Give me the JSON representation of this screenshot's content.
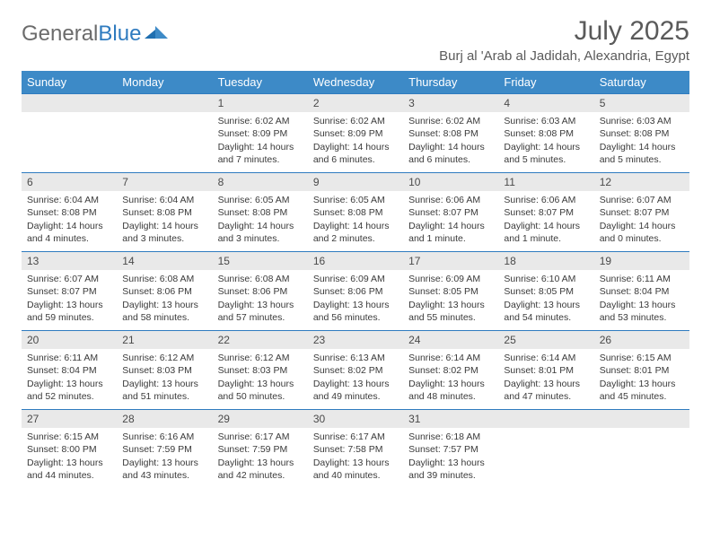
{
  "branding": {
    "logo_word1": "General",
    "logo_word2": "Blue",
    "logo_text_color": "#6b6b6b",
    "logo_accent_color": "#2f7bbf"
  },
  "header": {
    "title": "July 2025",
    "location": "Burj al 'Arab al Jadidah, Alexandria, Egypt",
    "title_color": "#5a5a5a",
    "title_fontsize": 30,
    "location_fontsize": 15
  },
  "styling": {
    "header_row_bg": "#3d8ac7",
    "header_row_text": "#ffffff",
    "daynum_bg": "#e9e9e9",
    "daynum_border_top": "#2f7bbf",
    "cell_text_color": "#3a3a3a",
    "cell_fontsize": 10.5,
    "daynum_fontsize": 12,
    "page_bg": "#ffffff"
  },
  "calendar": {
    "day_headers": [
      "Sunday",
      "Monday",
      "Tuesday",
      "Wednesday",
      "Thursday",
      "Friday",
      "Saturday"
    ],
    "weeks": [
      [
        null,
        null,
        {
          "n": "1",
          "sunrise": "6:02 AM",
          "sunset": "8:09 PM",
          "daylight": "14 hours and 7 minutes."
        },
        {
          "n": "2",
          "sunrise": "6:02 AM",
          "sunset": "8:09 PM",
          "daylight": "14 hours and 6 minutes."
        },
        {
          "n": "3",
          "sunrise": "6:02 AM",
          "sunset": "8:08 PM",
          "daylight": "14 hours and 6 minutes."
        },
        {
          "n": "4",
          "sunrise": "6:03 AM",
          "sunset": "8:08 PM",
          "daylight": "14 hours and 5 minutes."
        },
        {
          "n": "5",
          "sunrise": "6:03 AM",
          "sunset": "8:08 PM",
          "daylight": "14 hours and 5 minutes."
        }
      ],
      [
        {
          "n": "6",
          "sunrise": "6:04 AM",
          "sunset": "8:08 PM",
          "daylight": "14 hours and 4 minutes."
        },
        {
          "n": "7",
          "sunrise": "6:04 AM",
          "sunset": "8:08 PM",
          "daylight": "14 hours and 3 minutes."
        },
        {
          "n": "8",
          "sunrise": "6:05 AM",
          "sunset": "8:08 PM",
          "daylight": "14 hours and 3 minutes."
        },
        {
          "n": "9",
          "sunrise": "6:05 AM",
          "sunset": "8:08 PM",
          "daylight": "14 hours and 2 minutes."
        },
        {
          "n": "10",
          "sunrise": "6:06 AM",
          "sunset": "8:07 PM",
          "daylight": "14 hours and 1 minute."
        },
        {
          "n": "11",
          "sunrise": "6:06 AM",
          "sunset": "8:07 PM",
          "daylight": "14 hours and 1 minute."
        },
        {
          "n": "12",
          "sunrise": "6:07 AM",
          "sunset": "8:07 PM",
          "daylight": "14 hours and 0 minutes."
        }
      ],
      [
        {
          "n": "13",
          "sunrise": "6:07 AM",
          "sunset": "8:07 PM",
          "daylight": "13 hours and 59 minutes."
        },
        {
          "n": "14",
          "sunrise": "6:08 AM",
          "sunset": "8:06 PM",
          "daylight": "13 hours and 58 minutes."
        },
        {
          "n": "15",
          "sunrise": "6:08 AM",
          "sunset": "8:06 PM",
          "daylight": "13 hours and 57 minutes."
        },
        {
          "n": "16",
          "sunrise": "6:09 AM",
          "sunset": "8:06 PM",
          "daylight": "13 hours and 56 minutes."
        },
        {
          "n": "17",
          "sunrise": "6:09 AM",
          "sunset": "8:05 PM",
          "daylight": "13 hours and 55 minutes."
        },
        {
          "n": "18",
          "sunrise": "6:10 AM",
          "sunset": "8:05 PM",
          "daylight": "13 hours and 54 minutes."
        },
        {
          "n": "19",
          "sunrise": "6:11 AM",
          "sunset": "8:04 PM",
          "daylight": "13 hours and 53 minutes."
        }
      ],
      [
        {
          "n": "20",
          "sunrise": "6:11 AM",
          "sunset": "8:04 PM",
          "daylight": "13 hours and 52 minutes."
        },
        {
          "n": "21",
          "sunrise": "6:12 AM",
          "sunset": "8:03 PM",
          "daylight": "13 hours and 51 minutes."
        },
        {
          "n": "22",
          "sunrise": "6:12 AM",
          "sunset": "8:03 PM",
          "daylight": "13 hours and 50 minutes."
        },
        {
          "n": "23",
          "sunrise": "6:13 AM",
          "sunset": "8:02 PM",
          "daylight": "13 hours and 49 minutes."
        },
        {
          "n": "24",
          "sunrise": "6:14 AM",
          "sunset": "8:02 PM",
          "daylight": "13 hours and 48 minutes."
        },
        {
          "n": "25",
          "sunrise": "6:14 AM",
          "sunset": "8:01 PM",
          "daylight": "13 hours and 47 minutes."
        },
        {
          "n": "26",
          "sunrise": "6:15 AM",
          "sunset": "8:01 PM",
          "daylight": "13 hours and 45 minutes."
        }
      ],
      [
        {
          "n": "27",
          "sunrise": "6:15 AM",
          "sunset": "8:00 PM",
          "daylight": "13 hours and 44 minutes."
        },
        {
          "n": "28",
          "sunrise": "6:16 AM",
          "sunset": "7:59 PM",
          "daylight": "13 hours and 43 minutes."
        },
        {
          "n": "29",
          "sunrise": "6:17 AM",
          "sunset": "7:59 PM",
          "daylight": "13 hours and 42 minutes."
        },
        {
          "n": "30",
          "sunrise": "6:17 AM",
          "sunset": "7:58 PM",
          "daylight": "13 hours and 40 minutes."
        },
        {
          "n": "31",
          "sunrise": "6:18 AM",
          "sunset": "7:57 PM",
          "daylight": "13 hours and 39 minutes."
        },
        null,
        null
      ]
    ],
    "labels": {
      "sunrise_prefix": "Sunrise: ",
      "sunset_prefix": "Sunset: ",
      "daylight_prefix": "Daylight: "
    }
  }
}
